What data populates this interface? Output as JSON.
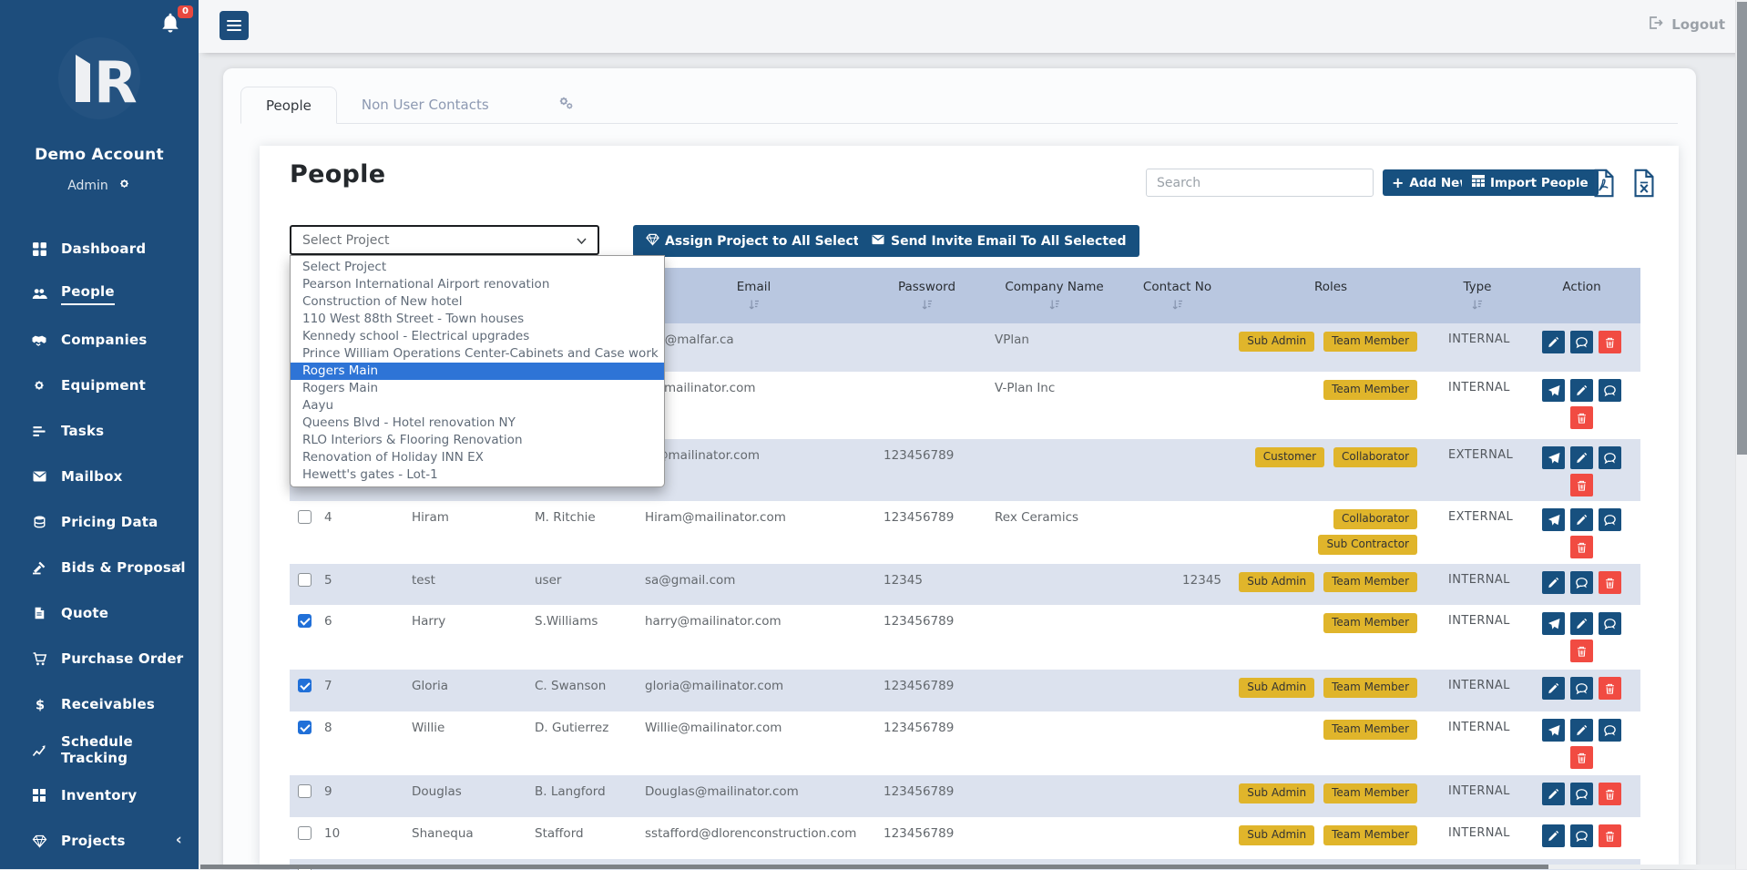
{
  "topbar": {
    "logout_label": "Logout"
  },
  "sidebar": {
    "account_name": "Demo Account",
    "account_role": "Admin",
    "notification_count": "0",
    "items": [
      {
        "icon": "dashboard",
        "label": "Dashboard"
      },
      {
        "icon": "people",
        "label": "People",
        "active": true
      },
      {
        "icon": "companies",
        "label": "Companies"
      },
      {
        "icon": "equipment",
        "label": "Equipment"
      },
      {
        "icon": "tasks",
        "label": "Tasks"
      },
      {
        "icon": "mailbox",
        "label": "Mailbox"
      },
      {
        "icon": "pricing",
        "label": "Pricing Data"
      },
      {
        "icon": "bids",
        "label": "Bids & Proposal",
        "has_submenu": true
      },
      {
        "icon": "quote",
        "label": "Quote"
      },
      {
        "icon": "purchase",
        "label": "Purchase Order",
        "has_submenu": true
      },
      {
        "icon": "receivables",
        "label": "Receivables"
      },
      {
        "icon": "schedule",
        "label": "Schedule Tracking"
      },
      {
        "icon": "inventory",
        "label": "Inventory"
      },
      {
        "icon": "projects",
        "label": "Projects",
        "has_submenu": true
      }
    ]
  },
  "tabs": {
    "people_label": "People",
    "non_user_label": "Non User Contacts"
  },
  "page": {
    "title": "People"
  },
  "toolbar": {
    "search_placeholder": "Search",
    "add_new_label": "Add New",
    "import_label": "Import People"
  },
  "bulk_actions": {
    "assign_label": "Assign Project to All Selected",
    "invite_label": "Send Invite Email To All Selected"
  },
  "project_select": {
    "value": "Select Project",
    "highlighted_index": 6,
    "options": [
      "Select Project",
      "Pearson International Airport renovation",
      "Construction of New hotel",
      "110 West 88th Street - Town houses",
      "Kennedy school - Electrical upgrades",
      "Prince William Operations Center-Cabinets and Case work",
      "Rogers Main",
      "Rogers Main",
      "Aayu",
      "Queens Blvd - Hotel renovation NY",
      "RLO Interiors & Flooring Renovation",
      "Renovation of Holiday INN EX",
      "Hewett's gates - Lot-1"
    ]
  },
  "table": {
    "columns": [
      {
        "label": "",
        "sortable": false
      },
      {
        "label": "",
        "sortable": false
      },
      {
        "label": "",
        "sortable": false
      },
      {
        "label": "",
        "sortable": false
      },
      {
        "label": "Email",
        "sortable": true
      },
      {
        "label": "Password",
        "sortable": true
      },
      {
        "label": "Company Name",
        "sortable": true
      },
      {
        "label": "Contact No",
        "sortable": true
      },
      {
        "label": "Roles",
        "sortable": false
      },
      {
        "label": "Type",
        "sortable": true
      },
      {
        "label": "Action",
        "sortable": false
      }
    ],
    "rows": [
      {
        "checked": false,
        "id": "",
        "first_name": "",
        "last_name": "",
        "email": "hm@malfar.ca",
        "password": "",
        "company": "VPlan",
        "contact": "",
        "roles": [
          "Sub Admin",
          "Team Member"
        ],
        "roles_stacked": false,
        "type": "INTERNAL",
        "actions_inline": [
          "edit",
          "chat",
          "delete"
        ],
        "actions_below": []
      },
      {
        "checked": false,
        "id": "",
        "first_name": "",
        "last_name": "",
        "email": "il@mailinator.com",
        "password": "",
        "company": "V-Plan Inc",
        "contact": "",
        "roles": [
          "Team Member"
        ],
        "roles_stacked": false,
        "type": "INTERNAL",
        "actions_inline": [
          "send",
          "edit",
          "chat"
        ],
        "actions_below": [
          "delete"
        ]
      },
      {
        "checked": false,
        "id": "",
        "first_name": "",
        "last_name": "",
        "email": "al@mailinator.com",
        "password": "123456789",
        "company": "",
        "contact": "",
        "roles": [
          "Customer",
          "Collaborator"
        ],
        "roles_stacked": false,
        "type": "EXTERNAL",
        "actions_inline": [
          "send",
          "edit",
          "chat"
        ],
        "actions_below": [
          "delete"
        ]
      },
      {
        "checked": false,
        "id": "4",
        "first_name": "Hiram",
        "last_name": "M. Ritchie",
        "email": "Hiram@mailinator.com",
        "password": "123456789",
        "company": "Rex Ceramics",
        "contact": "",
        "roles": [
          "Collaborator",
          "Sub Contractor"
        ],
        "roles_stacked": true,
        "type": "EXTERNAL",
        "actions_inline": [
          "send",
          "edit",
          "chat"
        ],
        "actions_below": [
          "delete"
        ]
      },
      {
        "checked": false,
        "id": "5",
        "first_name": "test",
        "last_name": "user",
        "email": "sa@gmail.com",
        "password": "12345",
        "company": "",
        "contact": "12345",
        "roles": [
          "Sub Admin",
          "Team Member"
        ],
        "roles_stacked": false,
        "type": "INTERNAL",
        "actions_inline": [
          "edit",
          "chat",
          "delete"
        ],
        "actions_below": []
      },
      {
        "checked": true,
        "id": "6",
        "first_name": "Harry",
        "last_name": "S.Williams",
        "email": "harry@mailinator.com",
        "password": "123456789",
        "company": "",
        "contact": "",
        "roles": [
          "Team Member"
        ],
        "roles_stacked": false,
        "type": "INTERNAL",
        "actions_inline": [
          "send",
          "edit",
          "chat"
        ],
        "actions_below": [
          "delete"
        ]
      },
      {
        "checked": true,
        "id": "7",
        "first_name": "Gloria",
        "last_name": "C. Swanson",
        "email": "gloria@mailinator.com",
        "password": "123456789",
        "company": "",
        "contact": "",
        "roles": [
          "Sub Admin",
          "Team Member"
        ],
        "roles_stacked": false,
        "type": "INTERNAL",
        "actions_inline": [
          "edit",
          "chat",
          "delete"
        ],
        "actions_below": []
      },
      {
        "checked": true,
        "id": "8",
        "first_name": "Willie",
        "last_name": "D. Gutierrez",
        "email": "Willie@mailinator.com",
        "password": "123456789",
        "company": "",
        "contact": "",
        "roles": [
          "Team Member"
        ],
        "roles_stacked": false,
        "type": "INTERNAL",
        "actions_inline": [
          "send",
          "edit",
          "chat"
        ],
        "actions_below": [
          "delete"
        ]
      },
      {
        "checked": false,
        "id": "9",
        "first_name": "Douglas",
        "last_name": "B. Langford",
        "email": "Douglas@mailinator.com",
        "password": "123456789",
        "company": "",
        "contact": "",
        "roles": [
          "Sub Admin",
          "Team Member"
        ],
        "roles_stacked": false,
        "type": "INTERNAL",
        "actions_inline": [
          "edit",
          "chat",
          "delete"
        ],
        "actions_below": []
      },
      {
        "checked": false,
        "id": "10",
        "first_name": "Shanequa",
        "last_name": "Stafford",
        "email": "sstafford@dlorenconstruction.com",
        "password": "123456789",
        "company": "",
        "contact": "",
        "roles": [
          "Sub Admin",
          "Team Member"
        ],
        "roles_stacked": false,
        "type": "INTERNAL",
        "actions_inline": [
          "edit",
          "chat",
          "delete"
        ],
        "actions_below": []
      }
    ],
    "partial_row": true
  },
  "colors": {
    "sidebar_blue": "#1d4d7c",
    "button_blue": "#17507f",
    "table_header_blue": "#b9c7e0",
    "row_alt_blue": "#dce2ee",
    "badge_yellow": "#e0b52b",
    "danger_red": "#f14b42",
    "option_highlight_blue": "#2e74d6"
  }
}
